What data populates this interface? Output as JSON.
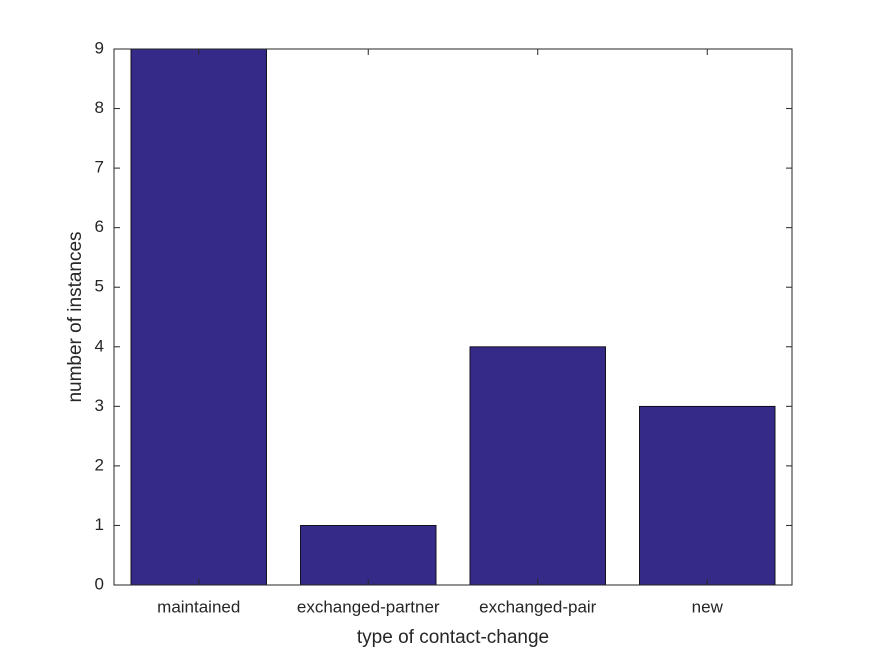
{
  "chart_data": {
    "type": "bar",
    "xlabel": "type of contact-change",
    "ylabel": "number of instances",
    "categories": [
      "maintained",
      "exchanged-partner",
      "exchanged-pair",
      "new"
    ],
    "values": [
      9,
      1,
      4,
      3
    ],
    "color": "#352a87",
    "ylim": [
      0,
      9
    ],
    "yticks": [
      0,
      1,
      2,
      3,
      4,
      5,
      6,
      7,
      8,
      9
    ]
  }
}
